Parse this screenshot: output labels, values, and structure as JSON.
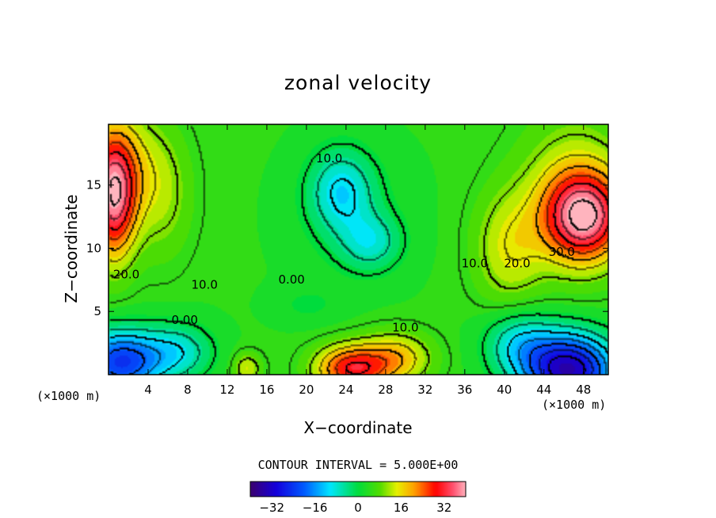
{
  "chart_data": {
    "type": "heatmap",
    "title": "zonal velocity",
    "xlabel": "X−coordinate",
    "ylabel": "Z−coordinate",
    "x_unit_left": "(×1000 m)",
    "x_unit_right": "(×1000 m)",
    "xlim": [
      0,
      50.5
    ],
    "ylim": [
      0,
      19.8
    ],
    "x_ticks": [
      4,
      8,
      12,
      16,
      20,
      24,
      28,
      32,
      36,
      40,
      44,
      48
    ],
    "y_ticks": [
      5,
      10,
      15
    ],
    "contour_interval_text": "CONTOUR INTERVAL = 5.000E+00",
    "colorbar": {
      "range": [
        -40,
        40
      ],
      "ticks": [
        -32,
        -16,
        0,
        16,
        32
      ],
      "tick_labels": [
        "−32",
        "−16",
        "0",
        "16",
        "32"
      ]
    },
    "contour_labels": [
      {
        "text": "10.0",
        "x": 22.3,
        "y": 16.8
      },
      {
        "text": "20.0",
        "x": 1.8,
        "y": 7.6
      },
      {
        "text": "10.0",
        "x": 9.7,
        "y": 6.8
      },
      {
        "text": "0.00",
        "x": 18.5,
        "y": 7.2
      },
      {
        "text": "0.00",
        "x": 7.7,
        "y": 4.0
      },
      {
        "text": "10.0",
        "x": 30.0,
        "y": 3.4
      },
      {
        "text": "10.0",
        "x": 37.0,
        "y": 8.5
      },
      {
        "text": "20.0",
        "x": 41.3,
        "y": 8.5
      },
      {
        "text": "30.0",
        "x": 45.8,
        "y": 9.4
      }
    ],
    "field_features": [
      {
        "x": 0.5,
        "y": 14,
        "sx": 2.2,
        "sy": 4.8,
        "value": 30
      },
      {
        "x": 1.5,
        "y": 16.5,
        "sx": 4,
        "sy": 4.5,
        "value": 10
      },
      {
        "x": 5.5,
        "y": 14,
        "sx": 3,
        "sy": 5,
        "value": 6
      },
      {
        "x": 48,
        "y": 12.5,
        "sx": 4,
        "sy": 3.5,
        "value": 33
      },
      {
        "x": 47,
        "y": 15,
        "sx": 5.5,
        "sy": 6,
        "value": 8
      },
      {
        "x": 40.5,
        "y": 10,
        "sx": 3.5,
        "sy": 4.5,
        "value": 10
      },
      {
        "x": 23.5,
        "y": 14.5,
        "sx": 3.2,
        "sy": 3.2,
        "value": -13
      },
      {
        "x": 26.5,
        "y": 10.5,
        "sx": 3,
        "sy": 2.2,
        "value": -10
      },
      {
        "x": 24.5,
        "y": 12.5,
        "sx": 6,
        "sy": 5.5,
        "value": -3
      },
      {
        "x": 1.2,
        "y": 1.0,
        "sx": 4,
        "sy": 2.5,
        "value": -28
      },
      {
        "x": 7,
        "y": 1.8,
        "sx": 3.5,
        "sy": 2.2,
        "value": -12
      },
      {
        "x": 46.5,
        "y": 0.4,
        "sx": 4.5,
        "sy": 2.8,
        "value": -38
      },
      {
        "x": 41.5,
        "y": 2.5,
        "sx": 3.5,
        "sy": 2.5,
        "value": -12
      },
      {
        "x": 24.5,
        "y": 0.5,
        "sx": 3.5,
        "sy": 1.8,
        "value": 25
      },
      {
        "x": 29,
        "y": 1.3,
        "sx": 3.5,
        "sy": 2.0,
        "value": 14
      },
      {
        "x": 14,
        "y": 0.5,
        "sx": 1.4,
        "sy": 1.2,
        "value": 10
      },
      {
        "x": 20,
        "y": 5.5,
        "sx": 3.5,
        "sy": 1.5,
        "value": -3
      }
    ],
    "field_background": 4,
    "grid": false
  }
}
